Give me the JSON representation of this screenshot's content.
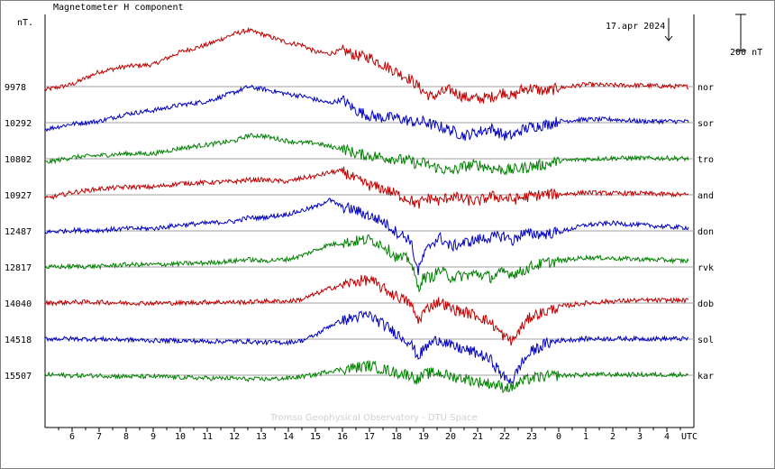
{
  "chart_data": {
    "type": "line",
    "title": "Magnetometer H component",
    "unit_label": "nT.",
    "date_label": "17.apr 2024",
    "scale_bar_label": "200 nT",
    "scale_bar_nT": 200,
    "credit": "Tromso Geophysical Observatory - DTU Space",
    "x_axis_unit": "UTC",
    "x_ticks": [
      "6",
      "7",
      "8",
      "9",
      "10",
      "11",
      "12",
      "13",
      "14",
      "15",
      "16",
      "17",
      "18",
      "19",
      "20",
      "21",
      "22",
      "23",
      "0",
      "1",
      "2",
      "3",
      "4"
    ],
    "x_range_hours": [
      5.0,
      29.0
    ],
    "date_marker_hour": 28.0,
    "colors": {
      "red": "#c00000",
      "blue": "#0000c0",
      "green": "#008000",
      "baseline": "#a0a0a0"
    },
    "x_hours": [
      5.0,
      6.0,
      7.0,
      8.0,
      9.0,
      10.0,
      11.0,
      12.0,
      12.5,
      13.0,
      14.0,
      14.5,
      15.0,
      15.5,
      16.0,
      16.5,
      17.0,
      17.5,
      18.0,
      18.5,
      18.8,
      19.0,
      19.3,
      19.6,
      20.0,
      20.5,
      21.0,
      21.5,
      22.0,
      22.3,
      22.6,
      23.0,
      23.5,
      24.0,
      25.0,
      26.0,
      27.0,
      28.0,
      28.8
    ],
    "series": [
      {
        "name": "nor",
        "baseline": 9978,
        "color": "red",
        "values": [
          9960,
          9990,
          10060,
          10090,
          10100,
          10170,
          10210,
          10270,
          10290,
          10270,
          10220,
          10210,
          10170,
          10160,
          10180,
          10150,
          10140,
          10100,
          10060,
          10020,
          9980,
          9950,
          9920,
          9940,
          9960,
          9920,
          9910,
          9920,
          9950,
          9920,
          9960,
          9970,
          9950,
          9970,
          9990,
          9985,
          9985,
          9980,
          9978
        ]
      },
      {
        "name": "sor",
        "baseline": 10292,
        "color": "blue",
        "values": [
          10255,
          10285,
          10300,
          10340,
          10360,
          10390,
          10410,
          10460,
          10490,
          10480,
          10450,
          10440,
          10420,
          10400,
          10420,
          10360,
          10330,
          10320,
          10320,
          10300,
          10290,
          10300,
          10280,
          10270,
          10250,
          10220,
          10240,
          10260,
          10220,
          10220,
          10250,
          10270,
          10280,
          10300,
          10310,
          10310,
          10300,
          10300,
          10298
        ]
      },
      {
        "name": "tro",
        "baseline": 10802,
        "color": "green",
        "values": [
          10780,
          10810,
          10820,
          10830,
          10830,
          10860,
          10880,
          10900,
          10930,
          10930,
          10900,
          10890,
          10890,
          10870,
          10860,
          10830,
          10820,
          10810,
          10800,
          10790,
          10770,
          10780,
          10760,
          10750,
          10730,
          10760,
          10770,
          10750,
          10740,
          10740,
          10750,
          10760,
          10770,
          10790,
          10800,
          10805,
          10805,
          10805,
          10802
        ]
      },
      {
        "name": "and",
        "baseline": 10927,
        "color": "red",
        "values": [
          10905,
          10940,
          10960,
          10970,
          10970,
          10990,
          10995,
          11000,
          11010,
          11010,
          11000,
          11020,
          11030,
          11050,
          11060,
          11010,
          10980,
          10960,
          10930,
          10900,
          10870,
          10900,
          10910,
          10890,
          10920,
          10900,
          10890,
          10920,
          10910,
          10900,
          10910,
          10920,
          10930,
          10930,
          10940,
          10935,
          10935,
          10930,
          10927
        ]
      },
      {
        "name": "don",
        "baseline": 12487,
        "color": "blue",
        "values": [
          12480,
          12490,
          12490,
          12500,
          12500,
          12520,
          12530,
          12540,
          12560,
          12560,
          12580,
          12600,
          12620,
          12660,
          12620,
          12600,
          12570,
          12540,
          12480,
          12440,
          12260,
          12350,
          12420,
          12450,
          12400,
          12420,
          12440,
          12450,
          12460,
          12430,
          12470,
          12470,
          12470,
          12480,
          12520,
          12530,
          12520,
          12510,
          12505
        ]
      },
      {
        "name": "rvk",
        "baseline": 12817,
        "color": "green",
        "values": [
          12815,
          12820,
          12820,
          12830,
          12830,
          12835,
          12840,
          12850,
          12860,
          12850,
          12860,
          12880,
          12910,
          12940,
          12950,
          12960,
          12970,
          12940,
          12870,
          12860,
          12700,
          12760,
          12760,
          12800,
          12760,
          12770,
          12780,
          12760,
          12790,
          12780,
          12790,
          12820,
          12840,
          12850,
          12870,
          12865,
          12860,
          12855,
          12850
        ]
      },
      {
        "name": "dob",
        "baseline": 14040,
        "color": "red",
        "values": [
          14040,
          14045,
          14045,
          14040,
          14040,
          14040,
          14045,
          14045,
          14045,
          14050,
          14050,
          14060,
          14090,
          14120,
          14140,
          14160,
          14170,
          14120,
          14080,
          14040,
          13940,
          13990,
          14030,
          14050,
          14010,
          13990,
          13970,
          13930,
          13850,
          13830,
          13900,
          13970,
          13990,
          14020,
          14040,
          14050,
          14055,
          14055,
          14055
        ]
      },
      {
        "name": "sol",
        "baseline": 14518,
        "color": "blue",
        "values": [
          14520,
          14520,
          14518,
          14515,
          14510,
          14510,
          14505,
          14505,
          14505,
          14500,
          14500,
          14510,
          14540,
          14590,
          14620,
          14640,
          14650,
          14600,
          14550,
          14500,
          14420,
          14460,
          14500,
          14520,
          14480,
          14460,
          14440,
          14400,
          14300,
          14290,
          14380,
          14450,
          14490,
          14510,
          14520,
          14520,
          14520,
          14520,
          14520
        ]
      },
      {
        "name": "kar",
        "baseline": 15507,
        "color": "green",
        "values": [
          15510,
          15505,
          15505,
          15500,
          15500,
          15495,
          15490,
          15490,
          15485,
          15485,
          15490,
          15500,
          15510,
          15530,
          15540,
          15550,
          15560,
          15540,
          15520,
          15510,
          15480,
          15510,
          15520,
          15520,
          15500,
          15490,
          15470,
          15460,
          15440,
          15440,
          15470,
          15490,
          15500,
          15505,
          15510,
          15510,
          15510,
          15510,
          15510
        ]
      }
    ]
  }
}
